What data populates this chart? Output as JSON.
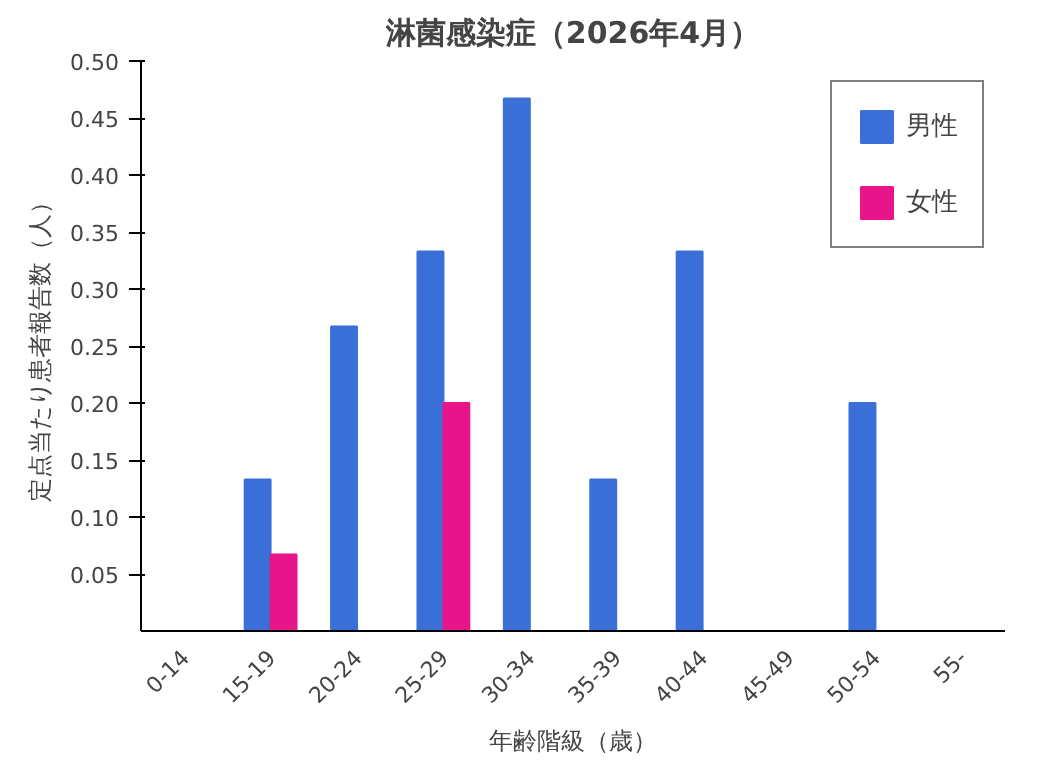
{
  "chart_data": {
    "type": "bar",
    "title": "淋菌感染症（2026年4月）",
    "xlabel": "年齢階級（歳）",
    "ylabel": "定点当たり患者報告数（人）",
    "categories": [
      "0-14",
      "15-19",
      "20-24",
      "25-29",
      "30-34",
      "35-39",
      "40-44",
      "45-49",
      "50-54",
      "55-"
    ],
    "series": [
      {
        "name": "男性",
        "color": "#3a6fd8",
        "values": [
          0,
          0.133,
          0.267,
          0.333,
          0.467,
          0.133,
          0.333,
          0,
          0.2,
          0
        ]
      },
      {
        "name": "女性",
        "color": "#e8158a",
        "values": [
          0,
          0.067,
          0,
          0.2,
          0,
          0,
          0,
          0,
          0,
          0
        ]
      }
    ],
    "ylim": [
      0,
      0.5
    ],
    "yticks": [
      {
        "value": 0.05,
        "label": "0.05"
      },
      {
        "value": 0.1,
        "label": "0.10"
      },
      {
        "value": 0.15,
        "label": "0.15"
      },
      {
        "value": 0.2,
        "label": "0.20"
      },
      {
        "value": 0.25,
        "label": "0.25"
      },
      {
        "value": 0.3,
        "label": "0.30"
      },
      {
        "value": 0.35,
        "label": "0.35"
      },
      {
        "value": 0.4,
        "label": "0.40"
      },
      {
        "value": 0.45,
        "label": "0.45"
      },
      {
        "value": 0.5,
        "label": "0.50"
      }
    ],
    "grid": false,
    "legend": "top right"
  }
}
